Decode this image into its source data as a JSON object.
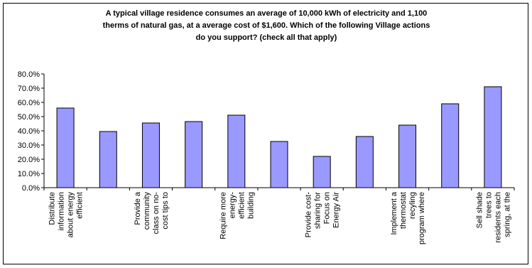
{
  "chart_data": {
    "type": "bar",
    "title": "A typical village residence  consumes an average of 10,000 kWh of electricity and 1,100\ntherms of natural gas, at a average cost of $1,600.  Which of the following Village actions\ndo you support? (check all that apply)",
    "xlabel": "",
    "ylabel": "",
    "ylim": [
      0,
      80
    ],
    "yticks": [
      "0.0%",
      "10.0%",
      "20.0%",
      "30.0%",
      "40.0%",
      "50.0%",
      "60.0%",
      "70.0%",
      "80.0%"
    ],
    "grid": false,
    "legend": "none",
    "bar_color": "#9999ff",
    "categories": [
      [
        "Distribute",
        "information",
        "about energy",
        "efficient"
      ],
      [],
      [
        "Provide a",
        "community",
        "class on no-",
        "cost tips to"
      ],
      [],
      [
        "Require more",
        "energy-",
        "efficient",
        "building"
      ],
      [],
      [
        "Provide cost-",
        "sharing for",
        "Focus on",
        "Energy Air"
      ],
      [],
      [
        "Implement a",
        "thermostat",
        "recyling",
        "program where"
      ],
      [],
      [
        "Sell shade",
        "trees to",
        "residents each",
        "spring, at the"
      ]
    ],
    "values": [
      56,
      39.5,
      45.5,
      46.5,
      51,
      32.5,
      22,
      36,
      44,
      59,
      71
    ]
  }
}
